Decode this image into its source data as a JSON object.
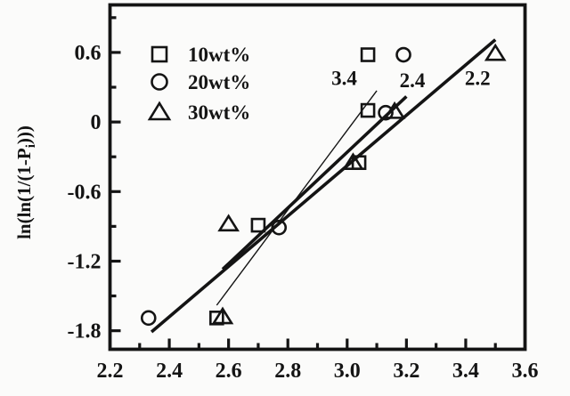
{
  "figure": {
    "background": "#fbfbfa",
    "ink": "#141414"
  },
  "chart_data": {
    "type": "scatter",
    "title": "",
    "xlabel": "",
    "ylabel": {
      "pre": "ln(ln(1/(1-P",
      "sub": "i",
      "post": ")))"
    },
    "xlim": [
      2.2,
      3.6
    ],
    "ylim": [
      -1.96,
      1.01
    ],
    "grid": false,
    "legend_position": "top-left-inside",
    "x_tick_labels": [
      {
        "v": 2.2,
        "label": "2.2"
      },
      {
        "v": 2.4,
        "label": "2.4"
      },
      {
        "v": 2.6,
        "label": "2.6"
      },
      {
        "v": 2.8,
        "label": "2.8"
      },
      {
        "v": 3.0,
        "label": "3.0"
      },
      {
        "v": 3.2,
        "label": "3.2"
      },
      {
        "v": 3.4,
        "label": "3.4"
      },
      {
        "v": 3.6,
        "label": "3.6"
      }
    ],
    "x_major_ticks": [
      2.4,
      2.6,
      2.8,
      3.0,
      3.2,
      3.4
    ],
    "x_minor_ticks": [
      2.3,
      2.5,
      2.7,
      2.9,
      3.1,
      3.3,
      3.5
    ],
    "y_tick_labels": [
      {
        "v": 0.6,
        "label": "0.6"
      },
      {
        "v": 0.0,
        "label": "0"
      },
      {
        "v": -0.6,
        "label": "-0.6"
      },
      {
        "v": -1.2,
        "label": "-1.2"
      },
      {
        "v": -1.8,
        "label": "-1.8"
      }
    ],
    "y_major_ticks": [
      0.6,
      0.0,
      -0.6,
      -1.2,
      -1.8
    ],
    "y_minor_ticks": [
      0.9,
      0.3,
      -0.3,
      -0.9,
      -1.5
    ],
    "series": [
      {
        "name": "10wt%",
        "marker": "square",
        "points": [
          [
            2.56,
            -1.69
          ],
          [
            2.7,
            -0.89
          ],
          [
            3.04,
            -0.35
          ],
          [
            3.07,
            0.1
          ],
          [
            3.07,
            0.58
          ]
        ],
        "fit_line": {
          "from": [
            2.56,
            -1.58
          ],
          "to": [
            3.1,
            0.27
          ],
          "weight": "thin",
          "slope_label": "3.4",
          "label_pos": [
            2.99,
            0.38
          ]
        }
      },
      {
        "name": "20wt%",
        "marker": "circle",
        "points": [
          [
            2.33,
            -1.69
          ],
          [
            2.77,
            -0.91
          ],
          [
            3.13,
            0.08
          ],
          [
            3.19,
            0.58
          ]
        ],
        "fit_line": {
          "from": [
            2.58,
            -1.27
          ],
          "to": [
            3.2,
            0.22
          ],
          "weight": "thick",
          "slope_label": "2.4",
          "label_pos": [
            3.22,
            0.36
          ]
        }
      },
      {
        "name": "30wt%",
        "marker": "triangle",
        "points": [
          [
            2.58,
            -1.68
          ],
          [
            2.6,
            -0.88
          ],
          [
            3.02,
            -0.35
          ],
          [
            3.16,
            0.09
          ],
          [
            3.5,
            0.59
          ]
        ],
        "fit_line": {
          "from": [
            2.34,
            -1.81
          ],
          "to": [
            3.5,
            0.71
          ],
          "weight": "thick",
          "slope_label": "2.2",
          "label_pos": [
            3.44,
            0.38
          ]
        }
      }
    ]
  }
}
